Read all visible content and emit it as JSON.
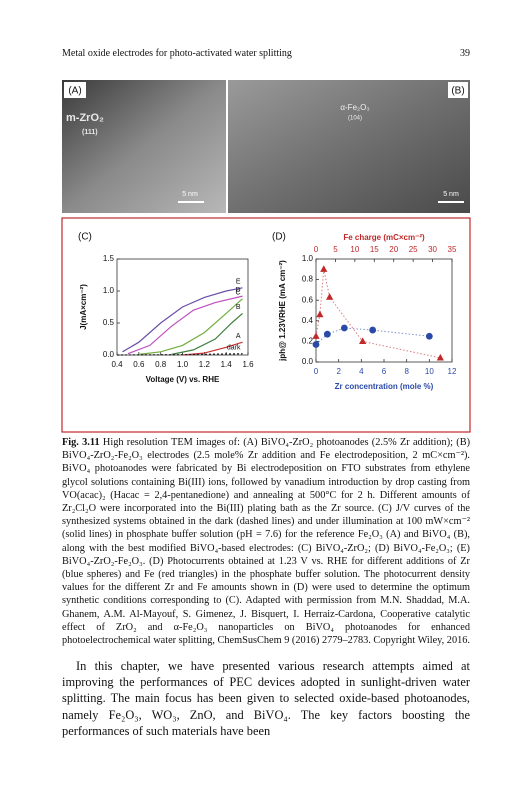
{
  "header": {
    "title": "Metal oxide electrodes for photo-activated water splitting",
    "page": "39"
  },
  "figure": {
    "panel_labels": [
      "(A)",
      "(B)",
      "(C)",
      "(D)"
    ],
    "image_a": {
      "material": "m-ZrO₂",
      "plane": "(111)",
      "scale": "5 nm"
    },
    "image_b": {
      "material": "α-Fe₂O₃",
      "plane": "(104)",
      "scale": "5 nm"
    }
  },
  "chart_data": [
    {
      "type": "line",
      "xlabel": "Voltage (V) vs. RHE",
      "ylabel": "J(mA×cm⁻²)",
      "xlim": [
        0.4,
        1.6
      ],
      "xticks": [
        0.4,
        0.6,
        0.8,
        {
          "value": 1,
          "label": "1.0"
        },
        1.2,
        1.4,
        1.6
      ],
      "ylim": [
        0,
        1.5
      ],
      "yticks": [
        {
          "value": 0,
          "label": "0.0"
        },
        0.5,
        {
          "value": 1,
          "label": "1.0"
        },
        1.5
      ],
      "series": [
        {
          "name": "E",
          "color": "#6a4ea8",
          "style": "solid",
          "x": [
            0.45,
            0.6,
            0.8,
            1.0,
            1.2,
            1.4,
            1.55
          ],
          "values": [
            0.05,
            0.2,
            0.5,
            0.75,
            0.9,
            1.0,
            1.05
          ]
        },
        {
          "name": "D",
          "color": "#c04fc0",
          "style": "solid",
          "x": [
            0.5,
            0.7,
            0.9,
            1.1,
            1.3,
            1.55
          ],
          "values": [
            0.02,
            0.15,
            0.45,
            0.7,
            0.82,
            0.92
          ]
        },
        {
          "name": "C",
          "color": "#6fae3f",
          "style": "solid",
          "x": [
            0.6,
            0.8,
            1.0,
            1.2,
            1.4,
            1.55
          ],
          "values": [
            0.01,
            0.05,
            0.15,
            0.35,
            0.65,
            0.88
          ]
        },
        {
          "name": "B",
          "color": "#3f7f3f",
          "style": "solid",
          "x": [
            0.9,
            1.1,
            1.3,
            1.45,
            1.55
          ],
          "values": [
            0.01,
            0.08,
            0.25,
            0.5,
            0.65
          ]
        },
        {
          "name": "A",
          "color": "#c83232",
          "style": "solid",
          "x": [
            1.0,
            1.2,
            1.4,
            1.55
          ],
          "values": [
            0,
            0.03,
            0.12,
            0.2
          ]
        },
        {
          "name": "dark",
          "color": "#222222",
          "style": "dashed",
          "x": [
            0.4,
            1.0,
            1.55
          ],
          "values": [
            0,
            0.005,
            0.02
          ]
        }
      ]
    },
    {
      "type": "scatter",
      "xlabel": "Zr concentration (mole %)",
      "x2label": "Fe charge (mC×cm⁻²)",
      "ylabel": "jph@ 1.23VRHE (mA cm⁻²)",
      "xlim": [
        0,
        12
      ],
      "xticks": [
        0,
        2,
        4,
        6,
        8,
        10,
        12
      ],
      "x2lim": [
        0,
        35
      ],
      "x2ticks": [
        0,
        5,
        10,
        15,
        20,
        25,
        30,
        35
      ],
      "ylim": [
        0,
        1
      ],
      "yticks": [
        {
          "value": 0,
          "label": "0.0"
        },
        0.2,
        0.4,
        0.6,
        0.8,
        {
          "value": 1,
          "label": "1.0"
        }
      ],
      "series": [
        {
          "name": "Zr",
          "color": "#2b4aa8",
          "marker": "circle",
          "axis": "x",
          "x": [
            0,
            1,
            2.5,
            5,
            10
          ],
          "values": [
            0.17,
            0.27,
            0.33,
            0.31,
            0.25
          ]
        },
        {
          "name": "Fe",
          "color": "#c0282a",
          "marker": "triangle",
          "axis": "x2",
          "x": [
            0,
            1,
            2,
            3.5,
            12,
            32
          ],
          "values": [
            0.25,
            0.46,
            0.9,
            0.63,
            0.2,
            0.04
          ]
        }
      ]
    }
  ],
  "caption": {
    "label": "Fig. 3.11",
    "text": "High resolution TEM images of: (A) BiVO₄-ZrO₂ photoanodes (2.5% Zr addition); (B) BiVO₄-ZrO₂-Fe₂O₃ electrodes (2.5 mole% Zr addition and Fe electrodeposition, 2 mC×cm⁻²). BiVO₄ photoanodes were fabricated by Bi electrodeposition on FTO substrates from ethylene glycol solutions containing Bi(III) ions, followed by vanadium introduction by drop casting from VO(acac)₂ (Hacac = 2,4-pentanedione) and annealing at 500°C for 2 h. Different amounts of Zr₂Cl₂O were incorporated into the Bi(III) plating bath as the Zr source. (C) J/V curves of the synthesized systems obtained in the dark (dashed lines) and under illumination at 100 mW×cm⁻² (solid lines) in phosphate buffer solution (pH = 7.6) for the reference Fe₂O₃ (A) and BiVO₄ (B), along with the best modified BiVO₄-based electrodes: (C) BiVO₄-ZrO₂; (D) BiVO₄-Fe₂O₃; (E) BiVO₄-ZrO₂-Fe₂O₃. (D) Photocurrents obtained at 1.23 V vs. RHE for different additions of Zr (blue spheres) and Fe (red triangles) in the phosphate buffer solution. The photocurrent density values for the different Zr and Fe amounts shown in (D) were used to determine the optimum synthetic conditions corresponding to (C). Adapted with permission from M.N. Shaddad, M.A. Ghanem, A.M. Al-Mayouf, S. Gimenez, J. Bisquert, I. Herraiz-Cardona, Cooperative catalytic effect of ZrO₂ and α-Fe₂O₃ nanoparticles on BiVO₄ photoanodes for enhanced photoelectrochemical water splitting, ChemSusChem 9 (2016) 2779–2783. Copyright Wiley, 2016."
  },
  "body": "In this chapter, we have presented various research attempts aimed at improving the performances of PEC devices adopted in sunlight-driven water splitting. The main focus has been given to selected oxide-based photoanodes, namely Fe₂O₃, WO₃, ZnO, and BiVO₄. The key factors boosting the performances of such materials have been"
}
